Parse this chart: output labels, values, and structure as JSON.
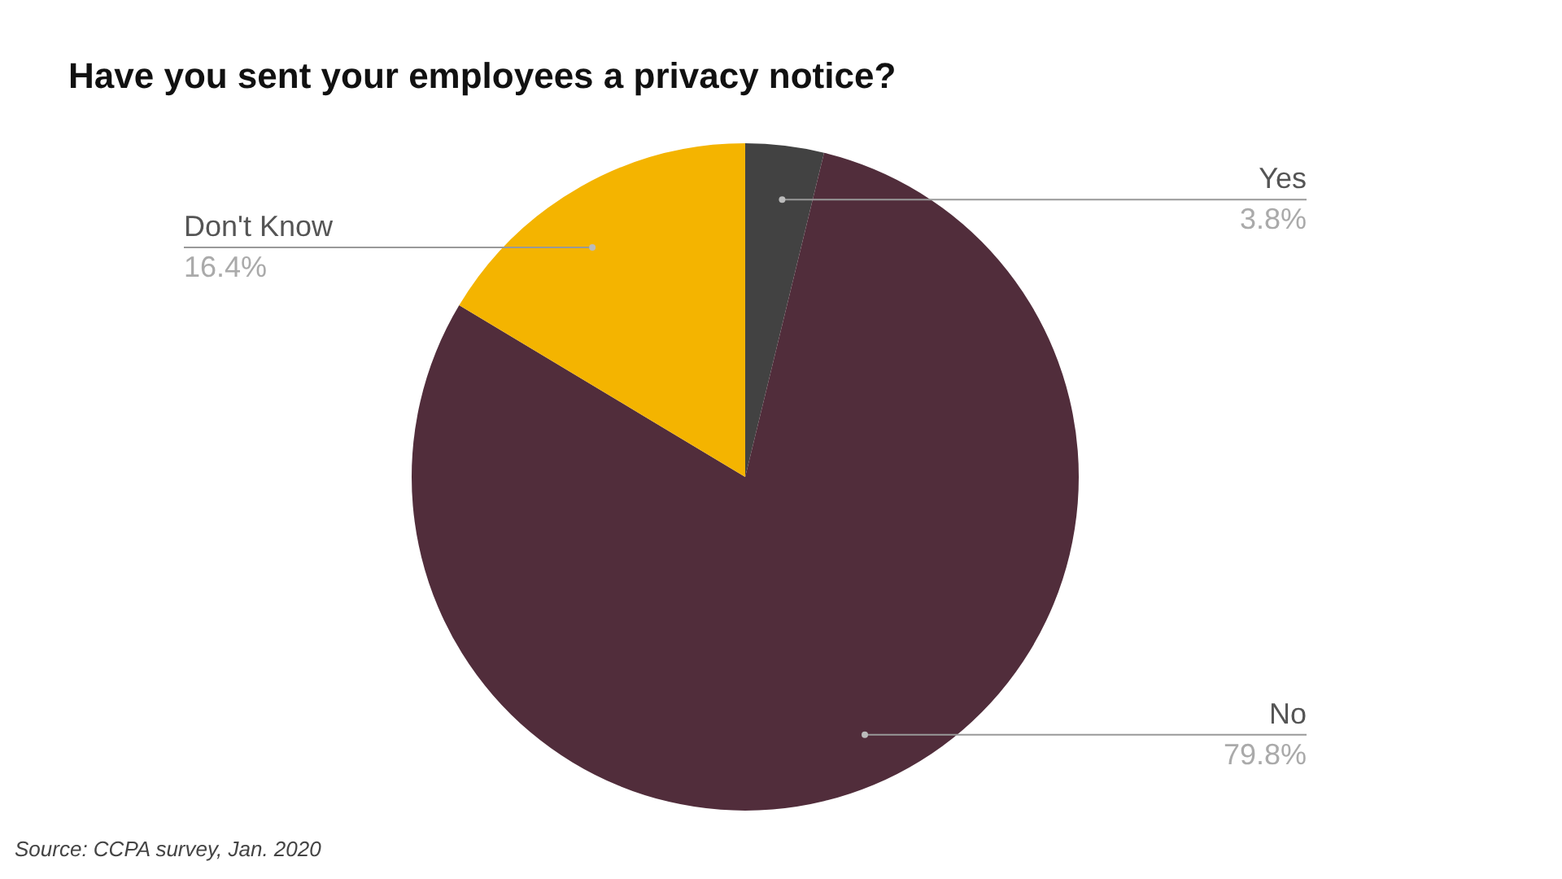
{
  "chart_data": {
    "type": "pie",
    "title": "Have you sent your employees a privacy notice?",
    "categories": [
      "Yes",
      "No",
      "Don't Know"
    ],
    "values": [
      3.8,
      79.8,
      16.4
    ],
    "value_labels": [
      "3.8%",
      "79.8%",
      "16.4%"
    ],
    "colors": [
      "#424242",
      "#512d3b",
      "#f4b400"
    ],
    "legend": false,
    "annotations": [
      "Source: CCPA survey, Jan. 2020"
    ]
  }
}
